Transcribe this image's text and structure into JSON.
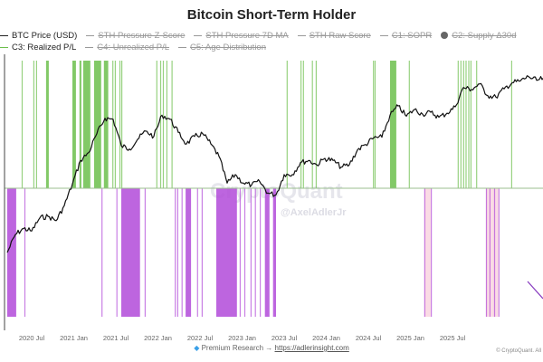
{
  "title": "Bitcoin Short-Term Holder",
  "legend": [
    {
      "label": "BTC Price (USD)",
      "state": "on",
      "marker": "line"
    },
    {
      "label": "STH Pressure Z-Score",
      "state": "off",
      "marker": "line"
    },
    {
      "label": "STH Pressure 7D MA",
      "state": "off",
      "marker": "line"
    },
    {
      "label": "STH Raw Score",
      "state": "off",
      "marker": "line"
    },
    {
      "label": "C1: SOPR",
      "state": "off",
      "marker": "line"
    },
    {
      "label": "C2: Supply Δ30d",
      "state": "off",
      "marker": "dot"
    },
    {
      "label": "C3: Realized P/L",
      "state": "on",
      "marker": "line",
      "color": "#6cbf4c"
    },
    {
      "label": "C4: Unrealized P/L",
      "state": "off",
      "marker": "line"
    },
    {
      "label": "C5: Age Distribution",
      "state": "off",
      "marker": "line"
    }
  ],
  "watermark": {
    "brand": "CryptoQuant",
    "handle": "@AxelAdlerJr"
  },
  "footer": {
    "icon": "diamond-icon",
    "text": "Premium Research →",
    "link": "https://adlerinsight.com",
    "copyright": "© CryptoQuant. All"
  },
  "colors": {
    "price": "#111111",
    "green_signal": "#6cbf4c",
    "purple_signal": "#b24ad9",
    "pink_fill": "#fadbe4",
    "baseline": "#9bbf8f"
  },
  "chart_data": {
    "type": "line",
    "title": "Bitcoin Short-Term Holder",
    "y_scale": "log",
    "grid": false,
    "legend_position": "top-left",
    "x_tick_labels": [
      "2020 Jul",
      "2021 Jan",
      "2021 Jul",
      "2022 Jan",
      "2022 Jul",
      "2023 Jan",
      "2023 Jul",
      "2024 Jan",
      "2024 Jul",
      "2025 Jan",
      "2025 Jul"
    ],
    "series": [
      {
        "name": "BTC Price (USD)",
        "dates": [
          "2020-03",
          "2020-04",
          "2020-05",
          "2020-06",
          "2020-07",
          "2020-08",
          "2020-09",
          "2020-10",
          "2020-11",
          "2020-12",
          "2021-01",
          "2021-02",
          "2021-03",
          "2021-04",
          "2021-05",
          "2021-06",
          "2021-07",
          "2021-08",
          "2021-09",
          "2021-10",
          "2021-11",
          "2021-12",
          "2022-01",
          "2022-02",
          "2022-03",
          "2022-04",
          "2022-05",
          "2022-06",
          "2022-07",
          "2022-08",
          "2022-09",
          "2022-10",
          "2022-11",
          "2022-12",
          "2023-01",
          "2023-02",
          "2023-03",
          "2023-04",
          "2023-05",
          "2023-06",
          "2023-07",
          "2023-08",
          "2023-09",
          "2023-10",
          "2023-11",
          "2023-12",
          "2024-01",
          "2024-02",
          "2024-03",
          "2024-04",
          "2024-05",
          "2024-06",
          "2024-07",
          "2024-08",
          "2024-09",
          "2024-10",
          "2024-11",
          "2024-12",
          "2025-01",
          "2025-02",
          "2025-03",
          "2025-04",
          "2025-05",
          "2025-06",
          "2025-07",
          "2025-08",
          "2025-09"
        ],
        "values": [
          6400,
          8600,
          9500,
          9100,
          11300,
          11600,
          10800,
          13800,
          19700,
          29000,
          33000,
          45000,
          58000,
          57000,
          37000,
          35000,
          41000,
          47000,
          43000,
          61000,
          57000,
          46000,
          38000,
          43000,
          45000,
          38000,
          31000,
          20000,
          23000,
          20000,
          19400,
          20500,
          17000,
          16500,
          23000,
          23000,
          28000,
          29000,
          27000,
          30000,
          29000,
          26000,
          27000,
          34500,
          37700,
          42000,
          42500,
          61000,
          71000,
          60000,
          67000,
          62000,
          64000,
          59000,
          63000,
          70000,
          96000,
          93000,
          102000,
          84000,
          82000,
          94000,
          104000,
          107000,
          115000,
          108000,
          112000
        ]
      }
    ],
    "signals_c3_realized_pl": {
      "green_positive": [
        [
          "2020-04-24"
        ],
        [
          "2020-06-07"
        ],
        [
          "2020-06-17"
        ],
        [
          "2020-07-24",
          "2020-08-04"
        ],
        [
          "2020-11-01",
          "2020-11-14"
        ],
        [
          "2020-11-27",
          "2020-12-04"
        ],
        [
          "2020-12-11",
          "2021-01-07"
        ],
        [
          "2021-01-21",
          "2021-02-17"
        ],
        [
          "2021-02-27",
          "2021-03-13"
        ],
        [
          "2021-03-28"
        ],
        [
          "2021-04-07"
        ],
        [
          "2021-04-24"
        ],
        [
          "2021-05-01"
        ],
        [
          "2021-09-10"
        ],
        [
          "2021-09-24"
        ],
        [
          "2021-10-04"
        ],
        [
          "2021-10-17"
        ],
        [
          "2021-11-06"
        ],
        [
          "2023-01-10"
        ],
        [
          "2023-03-01"
        ],
        [
          "2023-03-10"
        ],
        [
          "2023-04-13"
        ],
        [
          "2023-04-27"
        ],
        [
          "2023-11-28"
        ],
        [
          "2023-12-04"
        ],
        [
          "2024-02-01",
          "2024-02-24"
        ],
        [
          "2024-04-10"
        ],
        [
          "2024-10-10"
        ],
        [
          "2024-10-20"
        ],
        [
          "2024-10-30"
        ],
        [
          "2024-11-09"
        ],
        [
          "2024-11-19"
        ],
        [
          "2024-11-27"
        ],
        [
          "2024-12-18"
        ],
        [
          "2025-04-27"
        ]
      ],
      "purple_negative": [
        [
          "2020-03-01",
          "2020-04-04"
        ],
        [
          "2020-05-04"
        ],
        [
          "2021-02-18"
        ],
        [
          "2021-04-13"
        ],
        [
          "2021-05-01",
          "2021-07-10"
        ],
        [
          "2021-07-27"
        ],
        [
          "2021-11-18"
        ],
        [
          "2021-11-27"
        ],
        [
          "2021-12-13"
        ],
        [
          "2021-12-28",
          "2022-01-18"
        ],
        [
          "2022-02-10"
        ],
        [
          "2022-02-27"
        ],
        [
          "2022-04-21",
          "2022-07-07"
        ],
        [
          "2022-07-17"
        ],
        [
          "2022-08-04"
        ],
        [
          "2022-08-27"
        ],
        [
          "2022-09-13"
        ],
        [
          "2022-10-01"
        ],
        [
          "2022-10-20",
          "2022-11-07"
        ],
        [
          "2022-11-20",
          "2022-12-01"
        ],
        [
          "2024-06-07"
        ],
        [
          "2024-07-01"
        ],
        [
          "2025-01-24"
        ],
        [
          "2025-02-07"
        ],
        [
          "2025-02-24"
        ],
        [
          "2025-03-10"
        ]
      ],
      "pink_shaded": [
        [
          "2024-06-07",
          "2024-07-01"
        ],
        [
          "2025-01-24",
          "2025-03-10"
        ]
      ]
    }
  }
}
